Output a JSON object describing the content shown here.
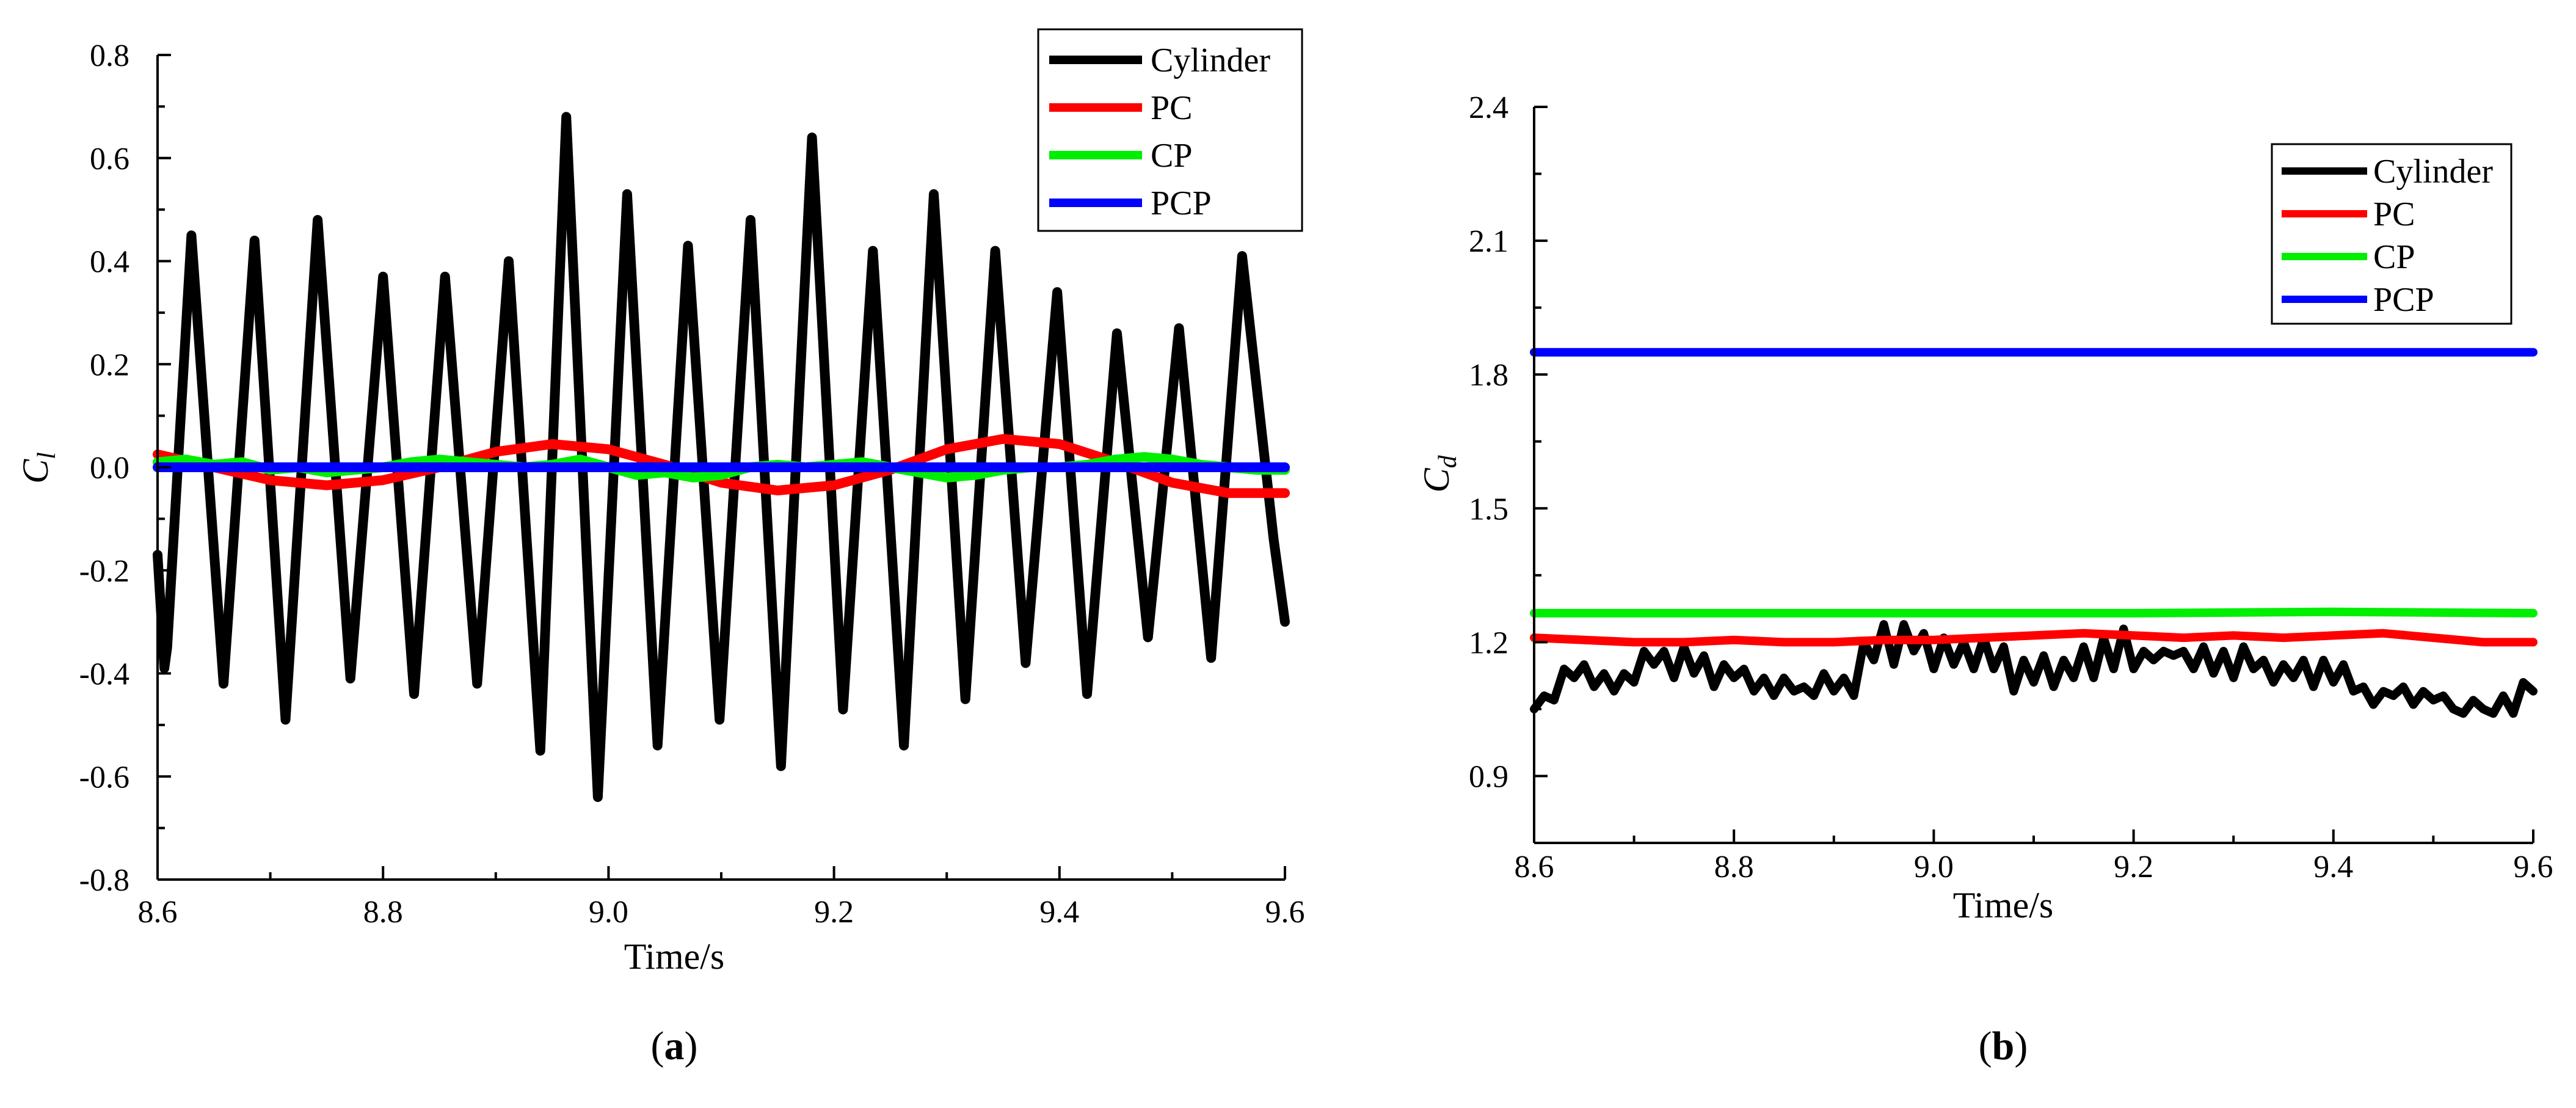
{
  "chart_data": [
    {
      "type": "line",
      "panel_label": {
        "open": "(",
        "letter": "a",
        "close": ")"
      },
      "xlabel": "Time/s",
      "ylabel": "C",
      "ylabel_sub": "l",
      "xlim": [
        8.6,
        9.6
      ],
      "ylim": [
        -0.8,
        0.8
      ],
      "xticks": [
        8.6,
        8.8,
        9.0,
        9.2,
        9.4,
        9.6
      ],
      "xtick_labels": [
        "8.6",
        "8.8",
        "9.0",
        "9.2",
        "9.4",
        "9.6"
      ],
      "yticks": [
        -0.8,
        -0.6,
        -0.4,
        -0.2,
        0.0,
        0.2,
        0.4,
        0.6,
        0.8
      ],
      "ytick_labels": [
        "-0.8",
        "-0.6",
        "-0.4",
        "-0.2",
        "0.0",
        "0.2",
        "0.4",
        "0.6",
        "0.8"
      ],
      "legend_position": "top-right",
      "series": [
        {
          "name": "Cylinder",
          "color": "#000000",
          "x": [
            8.6,
            8.606,
            8.6085,
            8.63,
            8.6585,
            8.686,
            8.7135,
            8.742,
            8.771,
            8.8,
            8.8275,
            8.855,
            8.8835,
            8.9115,
            8.9395,
            8.9625,
            8.9905,
            9.0165,
            9.0435,
            9.0705,
            9.0985,
            9.126,
            9.153,
            9.1805,
            9.208,
            9.2345,
            9.262,
            9.2885,
            9.3165,
            9.343,
            9.37,
            9.398,
            9.4245,
            9.451,
            9.4785,
            9.506,
            9.5345,
            9.562,
            9.59,
            9.6
          ],
          "y": [
            -0.17,
            -0.39,
            -0.35,
            0.45,
            -0.42,
            0.44,
            -0.49,
            0.48,
            -0.41,
            0.37,
            -0.44,
            0.37,
            -0.42,
            0.4,
            -0.55,
            0.68,
            -0.64,
            0.53,
            -0.54,
            0.43,
            -0.49,
            0.48,
            -0.58,
            0.64,
            -0.47,
            0.42,
            -0.54,
            0.53,
            -0.45,
            0.42,
            -0.38,
            0.34,
            -0.44,
            0.26,
            -0.33,
            0.27,
            -0.37,
            0.41,
            -0.14,
            -0.3
          ]
        },
        {
          "name": "PC",
          "color": "#ff0000",
          "x": [
            8.6,
            8.65,
            8.7,
            8.75,
            8.8,
            8.85,
            8.9,
            8.95,
            9.0,
            9.05,
            9.1,
            9.15,
            9.2,
            9.25,
            9.3,
            9.35,
            9.4,
            9.45,
            9.5,
            9.55,
            9.6
          ],
          "y": [
            0.025,
            0.0,
            -0.025,
            -0.035,
            -0.025,
            0.0,
            0.03,
            0.045,
            0.035,
            0.005,
            -0.03,
            -0.045,
            -0.035,
            -0.005,
            0.035,
            0.055,
            0.045,
            0.01,
            -0.03,
            -0.05,
            -0.05
          ]
        },
        {
          "name": "CP",
          "color": "#00ee00",
          "x": [
            8.6,
            8.625,
            8.65,
            8.675,
            8.7,
            8.725,
            8.75,
            8.775,
            8.8,
            8.825,
            8.85,
            8.875,
            8.9,
            8.925,
            8.95,
            8.975,
            9.0,
            9.025,
            9.05,
            9.075,
            9.1,
            9.125,
            9.15,
            9.175,
            9.2,
            9.225,
            9.25,
            9.275,
            9.3,
            9.325,
            9.35,
            9.375,
            9.4,
            9.425,
            9.45,
            9.475,
            9.5,
            9.525,
            9.55,
            9.575,
            9.6
          ],
          "y": [
            0.01,
            0.015,
            0.005,
            0.01,
            -0.005,
            0.0,
            -0.01,
            -0.005,
            0.0,
            0.01,
            0.015,
            0.01,
            0.005,
            0.0,
            0.005,
            0.015,
            0.0,
            -0.015,
            -0.01,
            -0.02,
            -0.015,
            0.0,
            0.005,
            0.0,
            0.005,
            0.01,
            0.0,
            -0.01,
            -0.02,
            -0.015,
            -0.005,
            0.0,
            0.0,
            0.005,
            0.015,
            0.02,
            0.015,
            0.005,
            0.0,
            -0.005,
            -0.005
          ]
        },
        {
          "name": "PCP",
          "color": "#0000ff",
          "x": [
            8.6,
            9.6
          ],
          "y": [
            0.0,
            0.0
          ]
        }
      ]
    },
    {
      "type": "line",
      "panel_label": {
        "open": "(",
        "letter": "b",
        "close": ")"
      },
      "xlabel": "Time/s",
      "ylabel": "C",
      "ylabel_sub": "d",
      "xlim": [
        8.6,
        9.6
      ],
      "ylim": [
        0.75,
        2.4
      ],
      "xticks": [
        8.6,
        8.8,
        9.0,
        9.2,
        9.4,
        9.6
      ],
      "xtick_labels": [
        "8.6",
        "8.8",
        "9.0",
        "9.2",
        "9.4",
        "9.6"
      ],
      "yticks": [
        0.9,
        1.2,
        1.5,
        1.8,
        2.1,
        2.4
      ],
      "ytick_labels": [
        "0.9",
        "1.2",
        "1.5",
        "1.8",
        "2.1",
        "2.4"
      ],
      "legend_position": "top-right",
      "series": [
        {
          "name": "Cylinder",
          "color": "#000000",
          "x": [
            8.6,
            8.61,
            8.62,
            8.63,
            8.64,
            8.65,
            8.66,
            8.67,
            8.68,
            8.69,
            8.7,
            8.71,
            8.72,
            8.73,
            8.74,
            8.75,
            8.76,
            8.77,
            8.78,
            8.79,
            8.8,
            8.81,
            8.82,
            8.83,
            8.84,
            8.85,
            8.86,
            8.87,
            8.88,
            8.89,
            8.9,
            8.91,
            8.92,
            8.93,
            8.94,
            8.95,
            8.96,
            8.97,
            8.98,
            8.99,
            9.0,
            9.01,
            9.02,
            9.03,
            9.04,
            9.05,
            9.06,
            9.07,
            9.08,
            9.09,
            9.1,
            9.11,
            9.12,
            9.13,
            9.14,
            9.15,
            9.16,
            9.17,
            9.18,
            9.19,
            9.2,
            9.21,
            9.22,
            9.23,
            9.24,
            9.25,
            9.26,
            9.27,
            9.28,
            9.29,
            9.3,
            9.31,
            9.32,
            9.33,
            9.34,
            9.35,
            9.36,
            9.37,
            9.38,
            9.39,
            9.4,
            9.41,
            9.42,
            9.43,
            9.44,
            9.45,
            9.46,
            9.47,
            9.48,
            9.49,
            9.5,
            9.51,
            9.52,
            9.53,
            9.54,
            9.55,
            9.56,
            9.57,
            9.58,
            9.59,
            9.6
          ],
          "y": [
            1.05,
            1.08,
            1.07,
            1.14,
            1.12,
            1.15,
            1.1,
            1.13,
            1.09,
            1.13,
            1.11,
            1.18,
            1.15,
            1.18,
            1.12,
            1.19,
            1.13,
            1.17,
            1.1,
            1.15,
            1.12,
            1.14,
            1.09,
            1.12,
            1.08,
            1.12,
            1.09,
            1.1,
            1.08,
            1.13,
            1.09,
            1.12,
            1.08,
            1.2,
            1.16,
            1.24,
            1.15,
            1.24,
            1.18,
            1.22,
            1.14,
            1.21,
            1.15,
            1.2,
            1.14,
            1.21,
            1.14,
            1.19,
            1.09,
            1.16,
            1.11,
            1.17,
            1.1,
            1.16,
            1.12,
            1.19,
            1.12,
            1.21,
            1.14,
            1.23,
            1.14,
            1.18,
            1.16,
            1.18,
            1.17,
            1.18,
            1.14,
            1.19,
            1.13,
            1.18,
            1.12,
            1.19,
            1.14,
            1.16,
            1.11,
            1.15,
            1.12,
            1.16,
            1.1,
            1.16,
            1.11,
            1.15,
            1.09,
            1.1,
            1.06,
            1.09,
            1.08,
            1.1,
            1.06,
            1.09,
            1.07,
            1.08,
            1.05,
            1.04,
            1.07,
            1.05,
            1.04,
            1.08,
            1.04,
            1.11,
            1.09
          ]
        },
        {
          "name": "PC",
          "color": "#ff0000",
          "x": [
            8.6,
            8.65,
            8.7,
            8.75,
            8.8,
            8.85,
            8.9,
            8.95,
            9.0,
            9.05,
            9.1,
            9.15,
            9.2,
            9.25,
            9.3,
            9.35,
            9.4,
            9.45,
            9.5,
            9.55,
            9.6
          ],
          "y": [
            1.21,
            1.205,
            1.2,
            1.2,
            1.205,
            1.2,
            1.2,
            1.205,
            1.205,
            1.21,
            1.215,
            1.22,
            1.215,
            1.21,
            1.215,
            1.21,
            1.215,
            1.22,
            1.21,
            1.2,
            1.2
          ]
        },
        {
          "name": "CP",
          "color": "#00ee00",
          "x": [
            8.6,
            8.8,
            9.0,
            9.2,
            9.4,
            9.6
          ],
          "y": [
            1.265,
            1.265,
            1.265,
            1.265,
            1.268,
            1.265
          ]
        },
        {
          "name": "PCP",
          "color": "#0000ff",
          "x": [
            8.6,
            9.6
          ],
          "y": [
            1.85,
            1.85
          ]
        }
      ]
    }
  ]
}
